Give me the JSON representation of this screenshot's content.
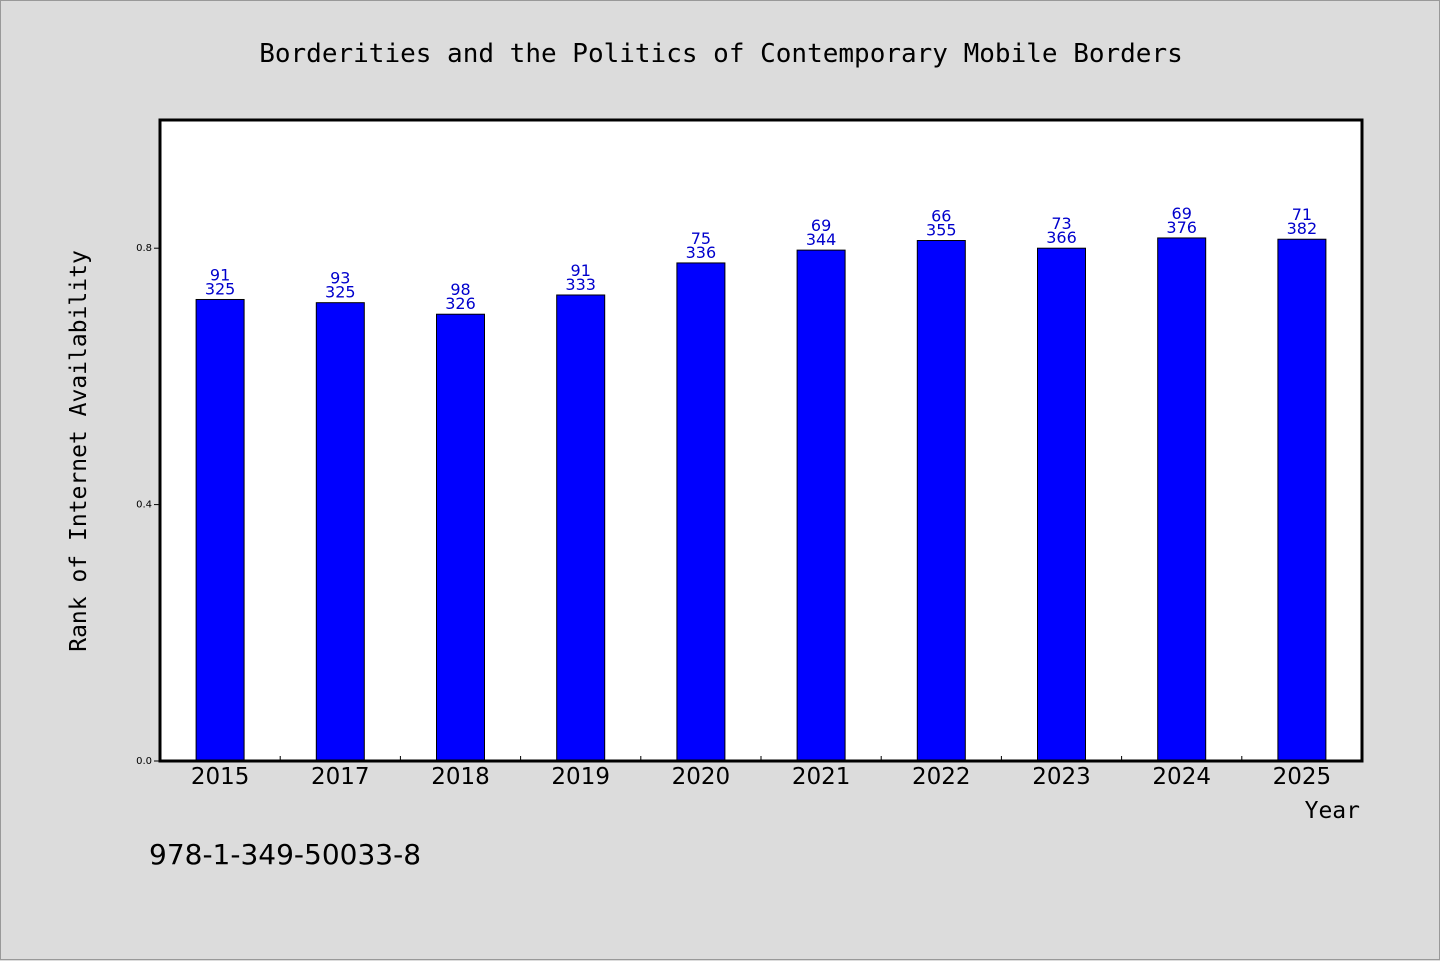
{
  "chart_data": {
    "type": "bar",
    "title": "Borderities and the Politics of Contemporary Mobile Borders",
    "xlabel": "Year",
    "ylabel": "Rank of Internet Availability",
    "categories": [
      "2015",
      "2017",
      "2018",
      "2019",
      "2020",
      "2021",
      "2022",
      "2023",
      "2024",
      "2025"
    ],
    "values": [
      0.72,
      0.715,
      0.697,
      0.727,
      0.777,
      0.797,
      0.812,
      0.8,
      0.816,
      0.814
    ],
    "annotations_top": [
      "91",
      "93",
      "98",
      "91",
      "75",
      "69",
      "66",
      "73",
      "69",
      "71"
    ],
    "annotations_bottom": [
      "325",
      "325",
      "326",
      "333",
      "336",
      "344",
      "355",
      "366",
      "376",
      "382"
    ],
    "ylim": [
      0,
      1
    ],
    "yticks": [
      0.0,
      0.4,
      0.8
    ],
    "ytick_labels": [
      "0.0",
      "0.4",
      "0.8"
    ],
    "grid": false,
    "bar_color": "#0000ff",
    "label_color": "#0000cc"
  },
  "footer": {
    "isbn": "978-1-349-50033-8"
  }
}
